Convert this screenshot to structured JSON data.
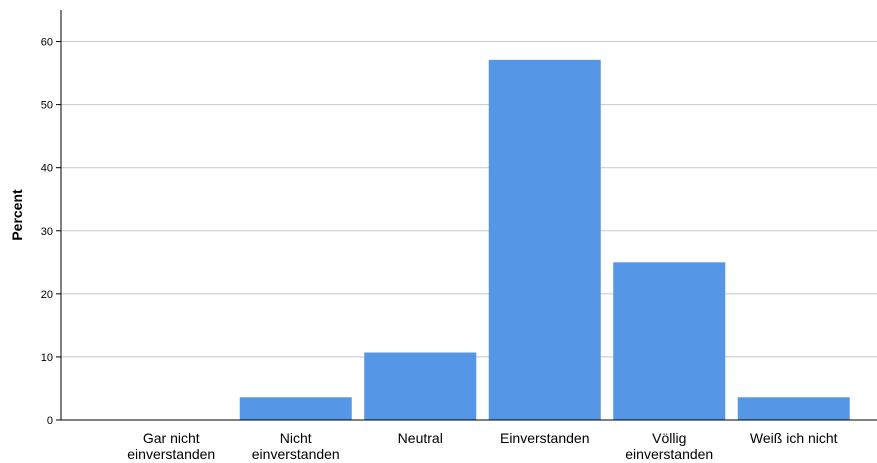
{
  "chart_data": {
    "type": "bar",
    "categories": [
      [
        "Gar nicht",
        "einverstanden"
      ],
      [
        "Nicht",
        "einverstanden"
      ],
      [
        "Neutral"
      ],
      [
        "Einverstanden"
      ],
      [
        "Völlig",
        "einverstanden"
      ],
      [
        "Weiß ich nicht"
      ]
    ],
    "values": [
      0,
      3.6,
      10.7,
      57.1,
      25.0,
      3.6
    ],
    "title": "",
    "xlabel": "",
    "ylabel": "Percent",
    "ylim": [
      0,
      65
    ],
    "yticks": [
      0,
      10,
      20,
      30,
      40,
      50,
      60
    ],
    "grid": true,
    "legend": "none",
    "bar_color": "#5596e6",
    "grid_color": "#c8c8c8",
    "axis_color": "#000000"
  }
}
